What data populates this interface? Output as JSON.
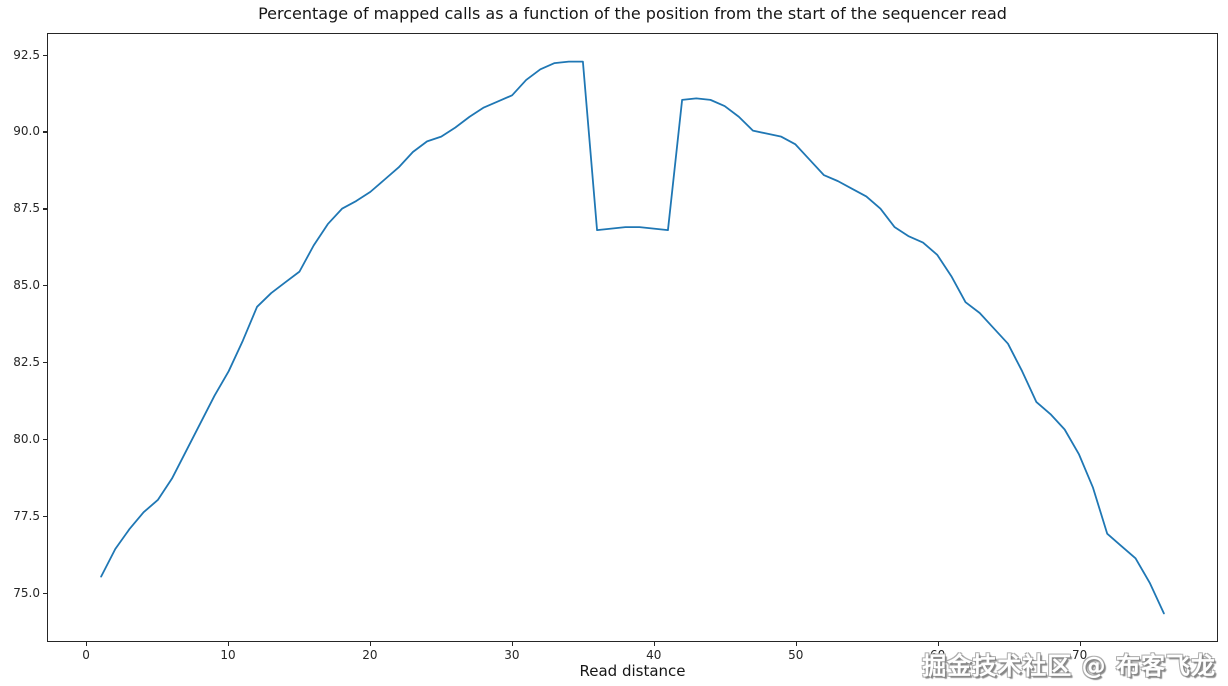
{
  "watermark": {
    "text": "掘金技术社区 @ 布客飞龙"
  },
  "chart_data": {
    "type": "line",
    "title": "Percentage of mapped calls as a function of the position from the start of the sequencer read",
    "xlabel": "Read distance",
    "ylabel": "",
    "line_color": "#1f77b4",
    "background_color": "#ffffff",
    "grid": false,
    "legend_position": "none",
    "xlim": [
      -2.75,
      79.75
    ],
    "ylim": [
      73.4,
      93.2
    ],
    "xticks": [
      0,
      10,
      20,
      30,
      40,
      50,
      60,
      70
    ],
    "yticks": [
      75.0,
      77.5,
      80.0,
      82.5,
      85.0,
      87.5,
      90.0,
      92.5
    ],
    "ytick_labels": [
      "75.0",
      "77.5",
      "80.0",
      "82.5",
      "85.0",
      "87.5",
      "90.0",
      "92.5"
    ],
    "x": [
      1,
      2,
      3,
      4,
      5,
      6,
      7,
      8,
      9,
      10,
      11,
      12,
      13,
      14,
      15,
      16,
      17,
      18,
      19,
      20,
      21,
      22,
      23,
      24,
      25,
      26,
      27,
      28,
      29,
      30,
      31,
      32,
      33,
      34,
      35,
      36,
      37,
      38,
      39,
      40,
      41,
      42,
      43,
      44,
      45,
      46,
      47,
      48,
      49,
      50,
      51,
      52,
      53,
      54,
      55,
      56,
      57,
      58,
      59,
      60,
      61,
      62,
      63,
      64,
      65,
      66,
      67,
      68,
      69,
      70,
      71,
      72,
      73,
      74,
      75,
      76
    ],
    "y": [
      75.5,
      76.4,
      77.05,
      77.6,
      78.0,
      78.7,
      79.6,
      80.5,
      81.4,
      82.2,
      83.2,
      84.3,
      84.75,
      85.1,
      85.45,
      86.3,
      87.0,
      87.5,
      87.75,
      88.05,
      88.45,
      88.85,
      89.35,
      89.7,
      89.85,
      90.15,
      90.5,
      90.8,
      91.0,
      91.2,
      91.7,
      92.05,
      92.25,
      92.3,
      92.3,
      86.8,
      86.85,
      86.9,
      86.9,
      86.85,
      86.8,
      91.05,
      91.1,
      91.05,
      90.85,
      90.5,
      90.05,
      89.95,
      89.85,
      89.6,
      89.1,
      88.6,
      88.4,
      88.15,
      87.9,
      87.5,
      86.9,
      86.6,
      86.4,
      86.0,
      85.3,
      84.45,
      84.1,
      83.6,
      83.1,
      82.2,
      81.2,
      80.8,
      80.3,
      79.5,
      78.4,
      76.9,
      76.5,
      76.1,
      75.3,
      74.3
    ]
  }
}
